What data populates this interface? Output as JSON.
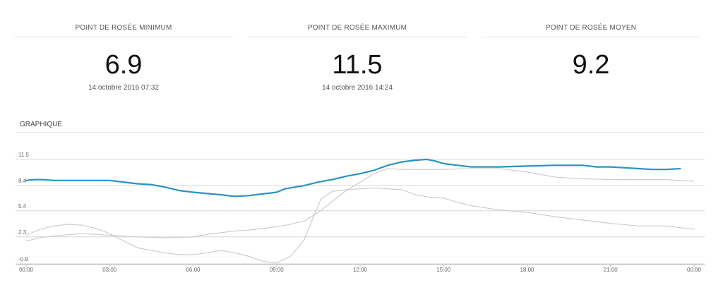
{
  "stats": [
    {
      "label": "POINT DE ROSÉE MINIMUM",
      "value": "6.9",
      "date": "14 octobre 2016 07:32"
    },
    {
      "label": "POINT DE ROSÉE MAXIMUM",
      "value": "11.5",
      "date": "14 octobre 2016 14:24"
    },
    {
      "label": "POINT DE ROSÉE MOYEN",
      "value": "9.2",
      "date": ""
    }
  ],
  "chart_title": "GRAPHIQUE",
  "colors": {
    "main_series": "#2b93c3",
    "secondary_series": "#c9c9c9",
    "grid": "#d6d6d6"
  },
  "chart_data": {
    "type": "line",
    "xlabel": "",
    "ylabel": "",
    "x_unit": "hours",
    "xlim": [
      0,
      24
    ],
    "ylim": [
      -0.9,
      13.5
    ],
    "x_ticks": [
      "00:00",
      "03:00",
      "06:00",
      "09:00",
      "12:00",
      "15:00",
      "18:00",
      "21:00",
      "00:00"
    ],
    "y_ticks": [
      "-0.9",
      "2.3",
      "5.4",
      "8.4",
      "11.5"
    ],
    "y_tick_values": [
      -0.9,
      2.3,
      5.4,
      8.4,
      11.5
    ],
    "grid": true,
    "legend": false,
    "series": [
      {
        "style": "main",
        "x": [
          0,
          0.3,
          0.6,
          1,
          2,
          3,
          3.5,
          4,
          4.5,
          5,
          5.5,
          6,
          7,
          7.5,
          8,
          8.5,
          9,
          9.3,
          10,
          10.5,
          11,
          11.5,
          12,
          12.5,
          13,
          13.5,
          14,
          14.4,
          14.7,
          15,
          15.5,
          16,
          17,
          18,
          19,
          20,
          20.5,
          21,
          21.5,
          22,
          22.5,
          23,
          23.5
        ],
        "y": [
          9.0,
          9.1,
          9.1,
          9.0,
          9.0,
          9.0,
          8.8,
          8.6,
          8.5,
          8.2,
          7.8,
          7.6,
          7.3,
          7.1,
          7.2,
          7.4,
          7.6,
          8.0,
          8.4,
          8.8,
          9.1,
          9.5,
          9.8,
          10.2,
          10.8,
          11.2,
          11.4,
          11.5,
          11.3,
          11.0,
          10.8,
          10.6,
          10.6,
          10.7,
          10.8,
          10.8,
          10.6,
          10.6,
          10.5,
          10.4,
          10.3,
          10.3,
          10.4
        ]
      },
      {
        "style": "secondary",
        "x": [
          0,
          0.5,
          1,
          1.5,
          2,
          2.5,
          3,
          3.5,
          4,
          4.5,
          5,
          5.5,
          6,
          6.5,
          7,
          7.5,
          8,
          8.5,
          9,
          9.5,
          10,
          10.3,
          10.6,
          11,
          11.5,
          12,
          12.5,
          13,
          13.5,
          14,
          14.5,
          15,
          15.5,
          16,
          17,
          18,
          19,
          20,
          21,
          22,
          23,
          24
        ],
        "y": [
          2.5,
          3.2,
          3.6,
          3.8,
          3.7,
          3.3,
          2.7,
          1.8,
          1.0,
          0.7,
          0.4,
          0.2,
          0.2,
          0.4,
          0.7,
          0.4,
          0.0,
          -0.6,
          -0.8,
          0.0,
          2.0,
          4.5,
          6.8,
          7.7,
          7.9,
          8.0,
          8.1,
          8.0,
          7.9,
          7.3,
          7.0,
          6.9,
          6.4,
          6.0,
          5.5,
          5.2,
          4.7,
          4.3,
          3.9,
          3.6,
          3.6,
          3.2
        ]
      },
      {
        "style": "secondary",
        "x": [
          0,
          0.5,
          1,
          2,
          3,
          4,
          5,
          6,
          6.5,
          7,
          7.5,
          8,
          8.5,
          9,
          9.5,
          10,
          10.5,
          11,
          11.5,
          12,
          12.5,
          13,
          13.5,
          14,
          15,
          16,
          17,
          18,
          19,
          20,
          21,
          22,
          23,
          23.5,
          24
        ],
        "y": [
          1.8,
          2.2,
          2.4,
          2.7,
          2.5,
          2.3,
          2.2,
          2.3,
          2.6,
          2.8,
          3.0,
          3.1,
          3.3,
          3.5,
          3.8,
          4.2,
          5.2,
          6.5,
          7.8,
          8.8,
          9.8,
          10.4,
          10.3,
          10.3,
          10.3,
          10.4,
          10.4,
          10.0,
          9.4,
          9.2,
          9.1,
          9.1,
          9.1,
          9.0,
          8.9
        ]
      }
    ]
  }
}
